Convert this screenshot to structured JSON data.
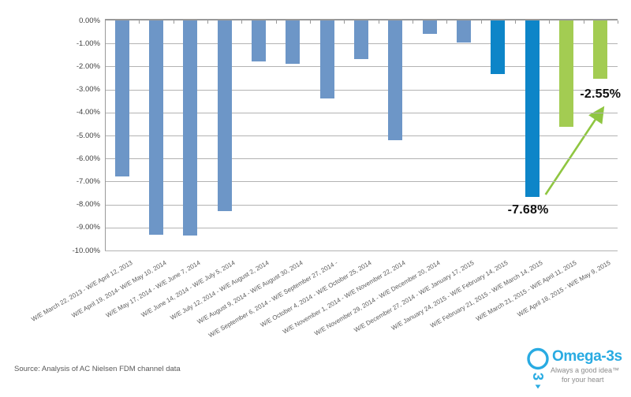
{
  "palette": {
    "bar_steel": "#6d96c7",
    "bar_blue": "#0d85c8",
    "bar_green": "#a3cc52",
    "arrow_green": "#8fc641",
    "grid": "#b3b3b3",
    "axis": "#999999",
    "annotation_text": "#111111",
    "logo_blue": "#29abe2",
    "logo_gray": "#8c8c8c"
  },
  "chart_data": {
    "type": "bar",
    "title": "",
    "xlabel": "",
    "ylabel": "",
    "ylim": [
      -10,
      0
    ],
    "grid": true,
    "legend": "none",
    "yticks": [
      "0.00%",
      "-1.00%",
      "-2.00%",
      "-3.00%",
      "-4.00%",
      "-5.00%",
      "-6.00%",
      "-7.00%",
      "-8.00%",
      "-9.00%",
      "-10.00%"
    ],
    "categories": [
      "W/E March 22, 2013 - W/E April 12, 2013",
      "W/E April 19, 2014- W/E May 10, 2014",
      "W/E May 17, 2014 - W/E June 7, 2014",
      "W/E June 14, 2014 - W/E July 5, 2014",
      "W/E July 12, 2014 - W/E August 2, 2014",
      "W/E August 9, 2014 - W/E August 30, 2014",
      "W/E September 6, 2014 - W/E September 27, 2014 -",
      "W/E October 4, 2014 - W/E October 25, 2014",
      "W/E November 1, 2014 - W/E November 22, 2014",
      "W/E November 29, 2014 - W/E December 20, 2014",
      "W/E December 27, 2014 - W/E January 17, 2015",
      "W/E January 24, 2015 - W/E February 14, 2015",
      "W/E  February 21, 2015 - W/E March 14, 2015",
      "W/E March 21, 2015 - W/E April 11, 2015",
      "W/E April 18, 2015 - W/E May 9, 2015"
    ],
    "values": [
      -6.78,
      -9.3,
      -9.36,
      -8.28,
      -1.78,
      -1.9,
      -3.4,
      -1.68,
      -5.2,
      -0.57,
      -0.95,
      -2.33,
      -7.68,
      -4.62,
      -2.55
    ],
    "bar_colors": [
      "steel",
      "steel",
      "steel",
      "steel",
      "steel",
      "steel",
      "steel",
      "steel",
      "steel",
      "steel",
      "steel",
      "blue",
      "blue",
      "green",
      "green"
    ],
    "annotations": [
      {
        "text": "-7.68%",
        "bar_index": 12,
        "placement": "below"
      },
      {
        "text": "-2.55%",
        "bar_index": 14,
        "placement": "beside",
        "arrow_from_bar": 12
      }
    ]
  },
  "footer": {
    "source": "Source: Analysis of AC Nielsen FDM channel data"
  },
  "logo": {
    "name": "Omega-3s",
    "tagline": "Always a good idea™",
    "subline": "for your heart"
  }
}
